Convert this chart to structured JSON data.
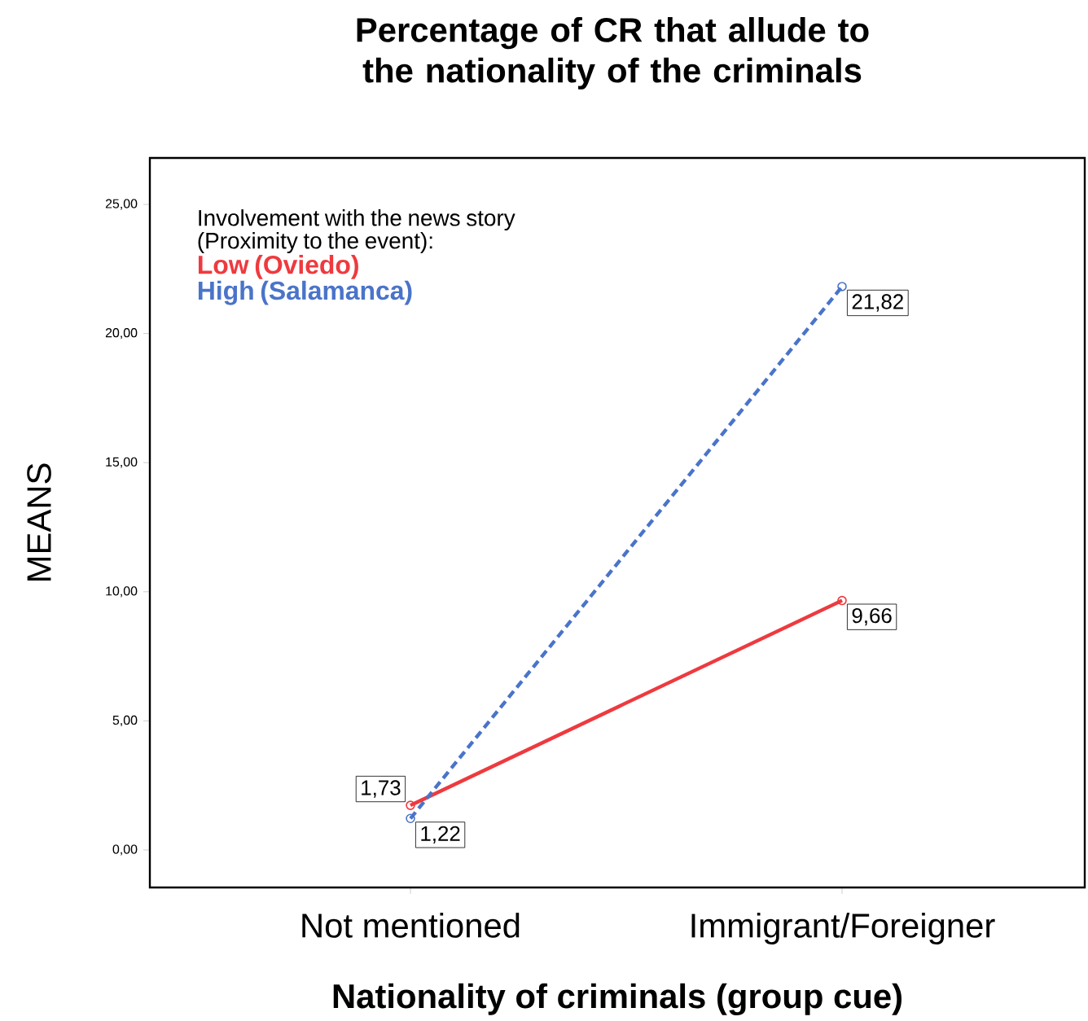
{
  "chart_data": {
    "type": "line",
    "title": "Percentage of CR that allude to the nationality of the criminals",
    "xlabel": "Nationality of criminals (group cue)",
    "ylabel": "MEANS",
    "categories": [
      "Not mentioned",
      "Immigrant/Foreigner"
    ],
    "series": [
      {
        "name": "Low (Oviedo)",
        "color": "#ee3a3f",
        "values": [
          1.73,
          9.66
        ],
        "value_labels": [
          "1,73",
          "9,66"
        ],
        "line_style": "solid"
      },
      {
        "name": "High (Salamanca)",
        "color": "#4a74c9",
        "values": [
          1.22,
          21.82
        ],
        "value_labels": [
          "1,22",
          "21,82"
        ],
        "line_style": "dashed"
      }
    ],
    "legend_title": "Involvement with the news story (Proximity to the event):",
    "legend": "top left",
    "marker": "circle",
    "grid": false,
    "ylim": [
      -1.45,
      26.8
    ],
    "yticks": [
      {
        "value": 0,
        "label": "0,00"
      },
      {
        "value": 5,
        "label": "5,00"
      },
      {
        "value": 10,
        "label": "10,00"
      },
      {
        "value": 15,
        "label": "15,00"
      },
      {
        "value": 20,
        "label": "20,00"
      },
      {
        "value": 25,
        "label": "25,00"
      }
    ]
  }
}
